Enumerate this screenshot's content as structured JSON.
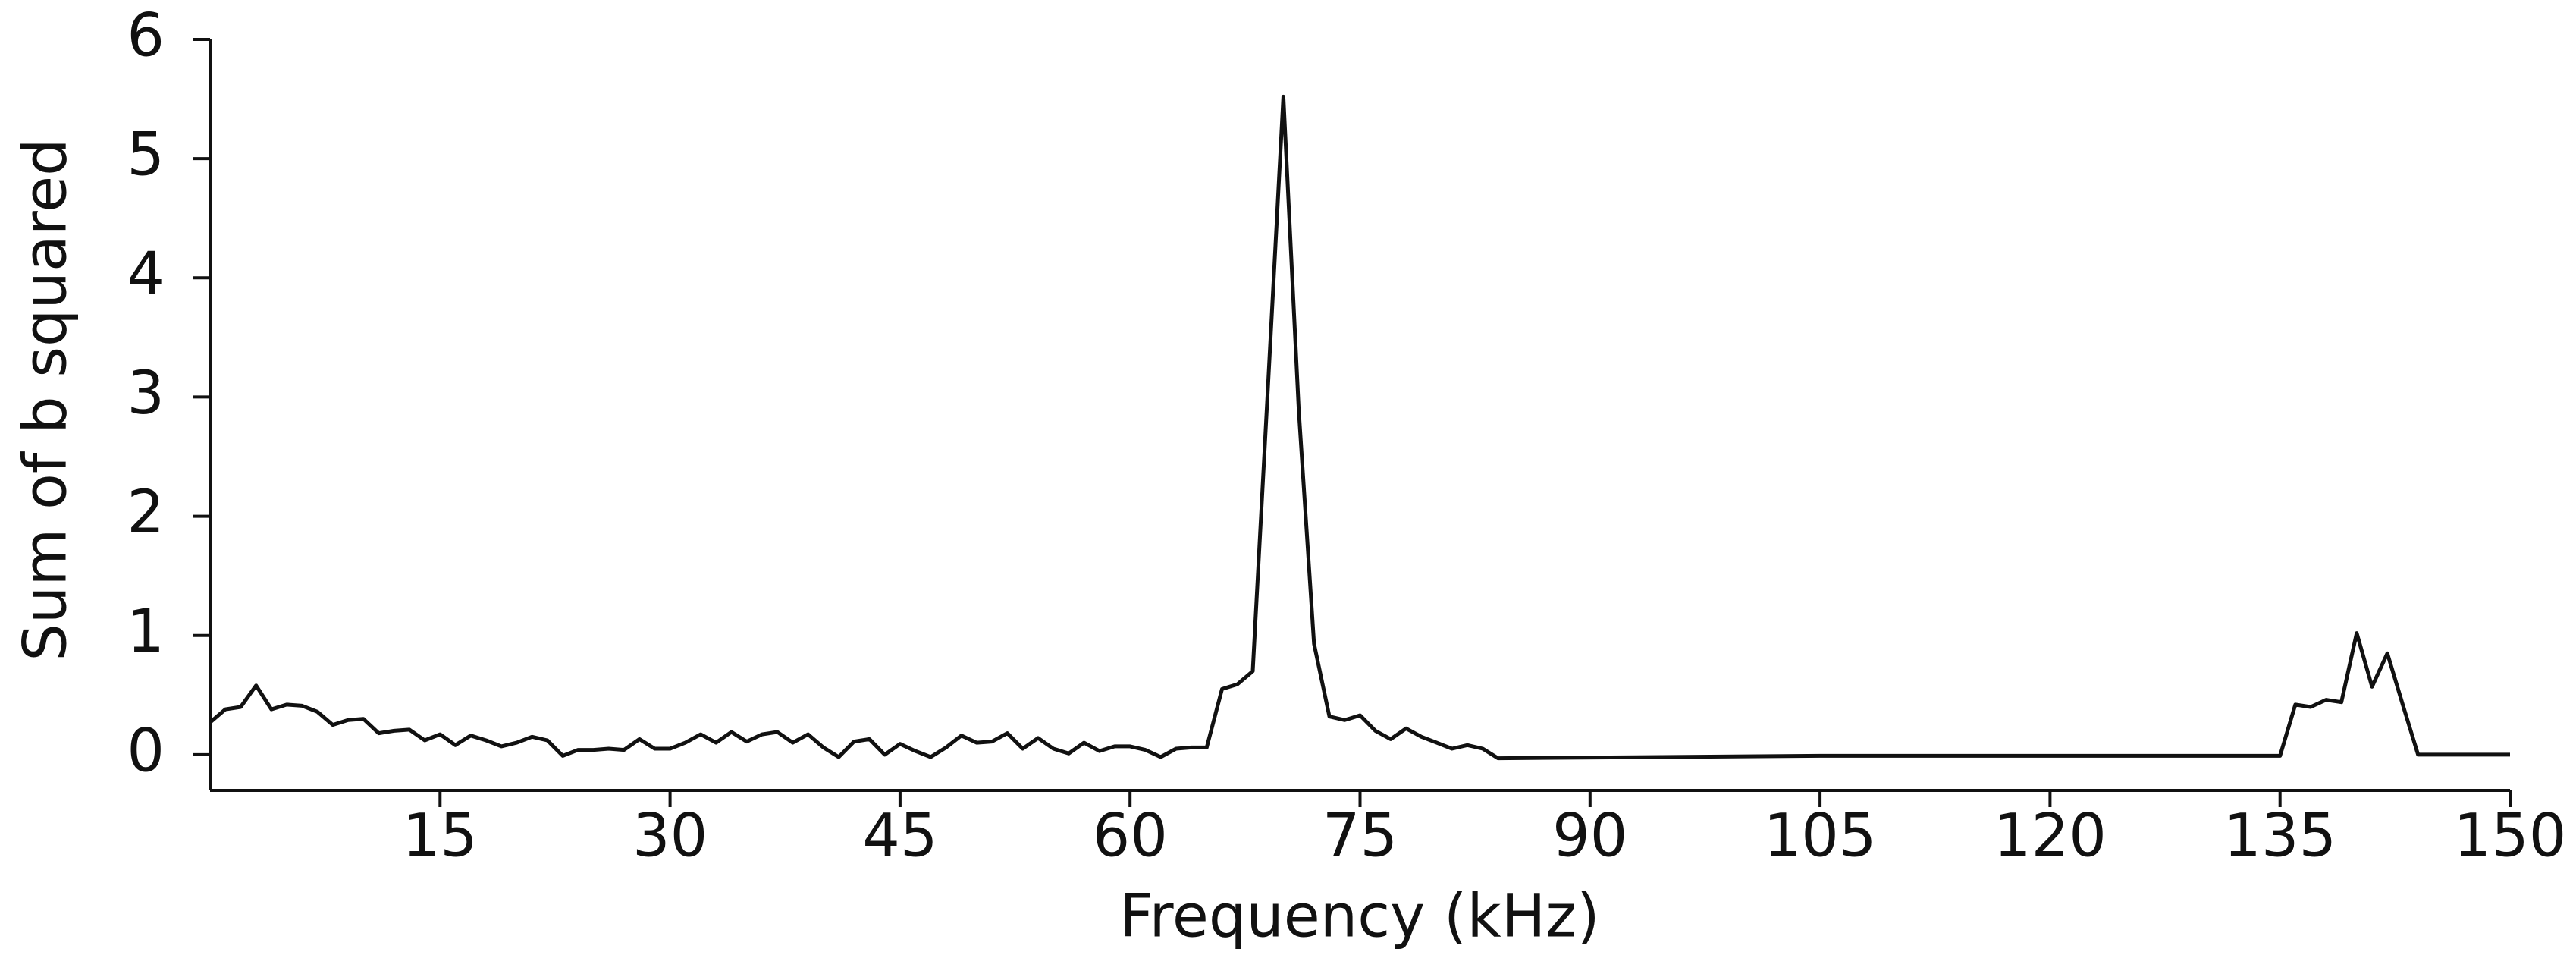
{
  "chart_data": {
    "type": "line",
    "x_label": "Frequency (kHz)",
    "y_label": "Sum of b squared",
    "xlim": [
      0,
      150
    ],
    "ylim": [
      -0.3,
      6
    ],
    "xticks": [
      15,
      30,
      45,
      60,
      75,
      90,
      105,
      120,
      135,
      150
    ],
    "yticks": [
      0,
      1,
      2,
      3,
      4,
      5,
      6
    ],
    "color": "#111111",
    "x": [
      0,
      1,
      2,
      3,
      4,
      5,
      6,
      7,
      8,
      9,
      10,
      11,
      12,
      13,
      14,
      15,
      16,
      17,
      18,
      19,
      20,
      21,
      22,
      23,
      24,
      25,
      26,
      27,
      28,
      29,
      30,
      31,
      32,
      33,
      34,
      35,
      36,
      37,
      38,
      39,
      40,
      41,
      42,
      43,
      44,
      45,
      46,
      47,
      48,
      49,
      50,
      51,
      52,
      53,
      54,
      55,
      56,
      57,
      58,
      59,
      60,
      61,
      62,
      63,
      64,
      65,
      66,
      67,
      68,
      69,
      70,
      71,
      72,
      73,
      74,
      75,
      76,
      77,
      78,
      79,
      80,
      81,
      82,
      83,
      84,
      105,
      135,
      136,
      137,
      138,
      139,
      140,
      141,
      142,
      143,
      144,
      150
    ],
    "values": [
      0.27,
      0.38,
      0.4,
      0.58,
      0.38,
      0.42,
      0.41,
      0.36,
      0.25,
      0.29,
      0.3,
      0.18,
      0.2,
      0.21,
      0.12,
      0.17,
      0.08,
      0.16,
      0.12,
      0.07,
      0.1,
      0.15,
      0.12,
      -0.01,
      0.04,
      0.04,
      0.05,
      0.04,
      0.13,
      0.05,
      0.05,
      0.1,
      0.17,
      0.1,
      0.19,
      0.11,
      0.17,
      0.19,
      0.1,
      0.17,
      0.06,
      -0.02,
      0.11,
      0.13,
      0.0,
      0.09,
      0.03,
      -0.02,
      0.06,
      0.16,
      0.1,
      0.11,
      0.18,
      0.05,
      0.14,
      0.05,
      0.01,
      0.1,
      0.03,
      0.07,
      0.07,
      0.04,
      -0.02,
      0.05,
      0.06,
      0.06,
      0.55,
      0.59,
      0.7,
      3.1,
      5.52,
      2.9,
      0.93,
      0.32,
      0.29,
      0.33,
      0.2,
      0.13,
      0.22,
      0.15,
      0.1,
      0.05,
      0.08,
      0.05,
      -0.03,
      -0.01,
      -0.01,
      0.42,
      0.4,
      0.46,
      0.44,
      1.02,
      0.57,
      0.85,
      0.42,
      0.0,
      0.0
    ]
  }
}
